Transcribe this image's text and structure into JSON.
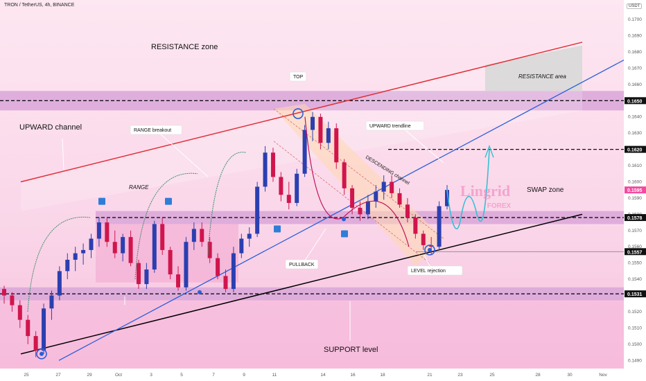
{
  "header": {
    "symbol": "TRON / TetherUS, 4h, BINANCE",
    "currency": "USDT"
  },
  "chart_data": {
    "type": "candlestick",
    "title": "TRON / TetherUS, 4h, BINANCE",
    "ylim": [
      0.1485,
      0.1712
    ],
    "y_ticks": [
      "0.1490",
      "0.1500",
      "0.1510",
      "0.1520",
      "0.1530",
      "0.1540",
      "0.1550",
      "0.1560",
      "0.1570",
      "0.1580",
      "0.1590",
      "0.1600",
      "0.1610",
      "0.1620",
      "0.1630",
      "0.1640",
      "0.1650",
      "0.1660",
      "0.1670",
      "0.1680",
      "0.1690",
      "0.1700"
    ],
    "x_ticks": [
      "25",
      "27",
      "29",
      "Oct",
      "3",
      "5",
      "7",
      "9",
      "11",
      "14",
      "16",
      "18",
      "21",
      "23",
      "25",
      "28",
      "30",
      "Nov"
    ],
    "price_tags": [
      {
        "value": 0.165,
        "label": "0.1650",
        "style": "black"
      },
      {
        "value": 0.162,
        "label": "0.1620",
        "style": "black"
      },
      {
        "value": 0.1595,
        "label": "0.1595",
        "style": "pink"
      },
      {
        "value": 0.1578,
        "label": "0.1578",
        "style": "black"
      },
      {
        "value": 0.1557,
        "label": "0.1557",
        "style": "black"
      },
      {
        "value": 0.1531,
        "label": "0.1531",
        "style": "black"
      }
    ],
    "candles": [
      {
        "o": 0.1534,
        "h": 0.1536,
        "l": 0.1525,
        "c": 0.153
      },
      {
        "o": 0.153,
        "h": 0.1532,
        "l": 0.152,
        "c": 0.1524
      },
      {
        "o": 0.1524,
        "h": 0.1527,
        "l": 0.151,
        "c": 0.1515
      },
      {
        "o": 0.1515,
        "h": 0.1518,
        "l": 0.15,
        "c": 0.1505
      },
      {
        "o": 0.1505,
        "h": 0.1508,
        "l": 0.1492,
        "c": 0.1496
      },
      {
        "o": 0.1496,
        "h": 0.1525,
        "l": 0.1494,
        "c": 0.1522
      },
      {
        "o": 0.1522,
        "h": 0.1533,
        "l": 0.1515,
        "c": 0.153
      },
      {
        "o": 0.153,
        "h": 0.1548,
        "l": 0.1527,
        "c": 0.1545
      },
      {
        "o": 0.1545,
        "h": 0.1556,
        "l": 0.154,
        "c": 0.1552
      },
      {
        "o": 0.1552,
        "h": 0.156,
        "l": 0.1545,
        "c": 0.1556
      },
      {
        "o": 0.1556,
        "h": 0.1562,
        "l": 0.1549,
        "c": 0.1558
      },
      {
        "o": 0.1558,
        "h": 0.1568,
        "l": 0.1553,
        "c": 0.1565
      },
      {
        "o": 0.1565,
        "h": 0.1578,
        "l": 0.156,
        "c": 0.1575
      },
      {
        "o": 0.1575,
        "h": 0.1578,
        "l": 0.156,
        "c": 0.1563
      },
      {
        "o": 0.1563,
        "h": 0.157,
        "l": 0.1553,
        "c": 0.1556
      },
      {
        "o": 0.1556,
        "h": 0.1568,
        "l": 0.1551,
        "c": 0.1566
      },
      {
        "o": 0.1566,
        "h": 0.157,
        "l": 0.1548,
        "c": 0.155
      },
      {
        "o": 0.155,
        "h": 0.1552,
        "l": 0.1534,
        "c": 0.1537
      },
      {
        "o": 0.1537,
        "h": 0.155,
        "l": 0.1534,
        "c": 0.1546
      },
      {
        "o": 0.1546,
        "h": 0.1576,
        "l": 0.1544,
        "c": 0.1574
      },
      {
        "o": 0.1574,
        "h": 0.1578,
        "l": 0.1555,
        "c": 0.1558
      },
      {
        "o": 0.1558,
        "h": 0.156,
        "l": 0.154,
        "c": 0.1543
      },
      {
        "o": 0.1543,
        "h": 0.1548,
        "l": 0.1533,
        "c": 0.1535
      },
      {
        "o": 0.1535,
        "h": 0.1566,
        "l": 0.1533,
        "c": 0.1563
      },
      {
        "o": 0.1563,
        "h": 0.1575,
        "l": 0.1558,
        "c": 0.1571
      },
      {
        "o": 0.1571,
        "h": 0.1575,
        "l": 0.156,
        "c": 0.1563
      },
      {
        "o": 0.1563,
        "h": 0.1566,
        "l": 0.155,
        "c": 0.1553
      },
      {
        "o": 0.1553,
        "h": 0.1556,
        "l": 0.154,
        "c": 0.1542
      },
      {
        "o": 0.1542,
        "h": 0.1546,
        "l": 0.1532,
        "c": 0.1534
      },
      {
        "o": 0.1534,
        "h": 0.156,
        "l": 0.1532,
        "c": 0.1556
      },
      {
        "o": 0.1556,
        "h": 0.1568,
        "l": 0.1553,
        "c": 0.1565
      },
      {
        "o": 0.1565,
        "h": 0.1572,
        "l": 0.156,
        "c": 0.1568
      },
      {
        "o": 0.1568,
        "h": 0.16,
        "l": 0.1566,
        "c": 0.1597
      },
      {
        "o": 0.1597,
        "h": 0.1622,
        "l": 0.1594,
        "c": 0.1618
      },
      {
        "o": 0.1618,
        "h": 0.1621,
        "l": 0.16,
        "c": 0.1603
      },
      {
        "o": 0.1603,
        "h": 0.1606,
        "l": 0.1588,
        "c": 0.1592
      },
      {
        "o": 0.1592,
        "h": 0.16,
        "l": 0.1583,
        "c": 0.1587
      },
      {
        "o": 0.1587,
        "h": 0.1608,
        "l": 0.1585,
        "c": 0.1605
      },
      {
        "o": 0.1605,
        "h": 0.1635,
        "l": 0.1603,
        "c": 0.1632
      },
      {
        "o": 0.1632,
        "h": 0.1643,
        "l": 0.1625,
        "c": 0.164
      },
      {
        "o": 0.164,
        "h": 0.1642,
        "l": 0.162,
        "c": 0.1624
      },
      {
        "o": 0.1624,
        "h": 0.1637,
        "l": 0.162,
        "c": 0.1633
      },
      {
        "o": 0.1633,
        "h": 0.1636,
        "l": 0.1608,
        "c": 0.1612
      },
      {
        "o": 0.1612,
        "h": 0.1614,
        "l": 0.1592,
        "c": 0.1596
      },
      {
        "o": 0.1596,
        "h": 0.1598,
        "l": 0.158,
        "c": 0.1584
      },
      {
        "o": 0.1584,
        "h": 0.1588,
        "l": 0.1576,
        "c": 0.158
      },
      {
        "o": 0.158,
        "h": 0.1592,
        "l": 0.1577,
        "c": 0.1588
      },
      {
        "o": 0.1588,
        "h": 0.1598,
        "l": 0.1584,
        "c": 0.1594
      },
      {
        "o": 0.1594,
        "h": 0.1604,
        "l": 0.1589,
        "c": 0.16
      },
      {
        "o": 0.16,
        "h": 0.1604,
        "l": 0.159,
        "c": 0.1593
      },
      {
        "o": 0.1593,
        "h": 0.1596,
        "l": 0.1584,
        "c": 0.1586
      },
      {
        "o": 0.1586,
        "h": 0.159,
        "l": 0.1575,
        "c": 0.1578
      },
      {
        "o": 0.1578,
        "h": 0.158,
        "l": 0.1565,
        "c": 0.1568
      },
      {
        "o": 0.1568,
        "h": 0.157,
        "l": 0.1558,
        "c": 0.1561
      },
      {
        "o": 0.1561,
        "h": 0.1566,
        "l": 0.1555,
        "c": 0.156
      },
      {
        "o": 0.156,
        "h": 0.1588,
        "l": 0.1558,
        "c": 0.1585
      },
      {
        "o": 0.1585,
        "h": 0.1598,
        "l": 0.1583,
        "c": 0.1595
      }
    ],
    "annotations": {
      "resistance_zone": "RESISTANCE zone",
      "top": "TOP",
      "resistance_area": "RESISTANCE area",
      "upward_channel": "UPWARD channel",
      "range_breakout": "RANGE breakout",
      "upward_trendline": "UPWARD trendline",
      "descending_channel": "DESCENDING channel",
      "range": "RANGE",
      "swap_zone": "SWAP zone",
      "pullback": "PULLBACK",
      "level_rejection": "LEVEL rejection",
      "support_level": "SUPPORT level"
    },
    "watermark": {
      "brand": "Lingrid",
      "sub": "FOREX"
    },
    "colors": {
      "up": "#2b3fb0",
      "down": "#d0154d",
      "channel": "#e02e36",
      "trend": "#2a5ed8",
      "support": "#000000",
      "projection": "#35c0d4"
    }
  }
}
